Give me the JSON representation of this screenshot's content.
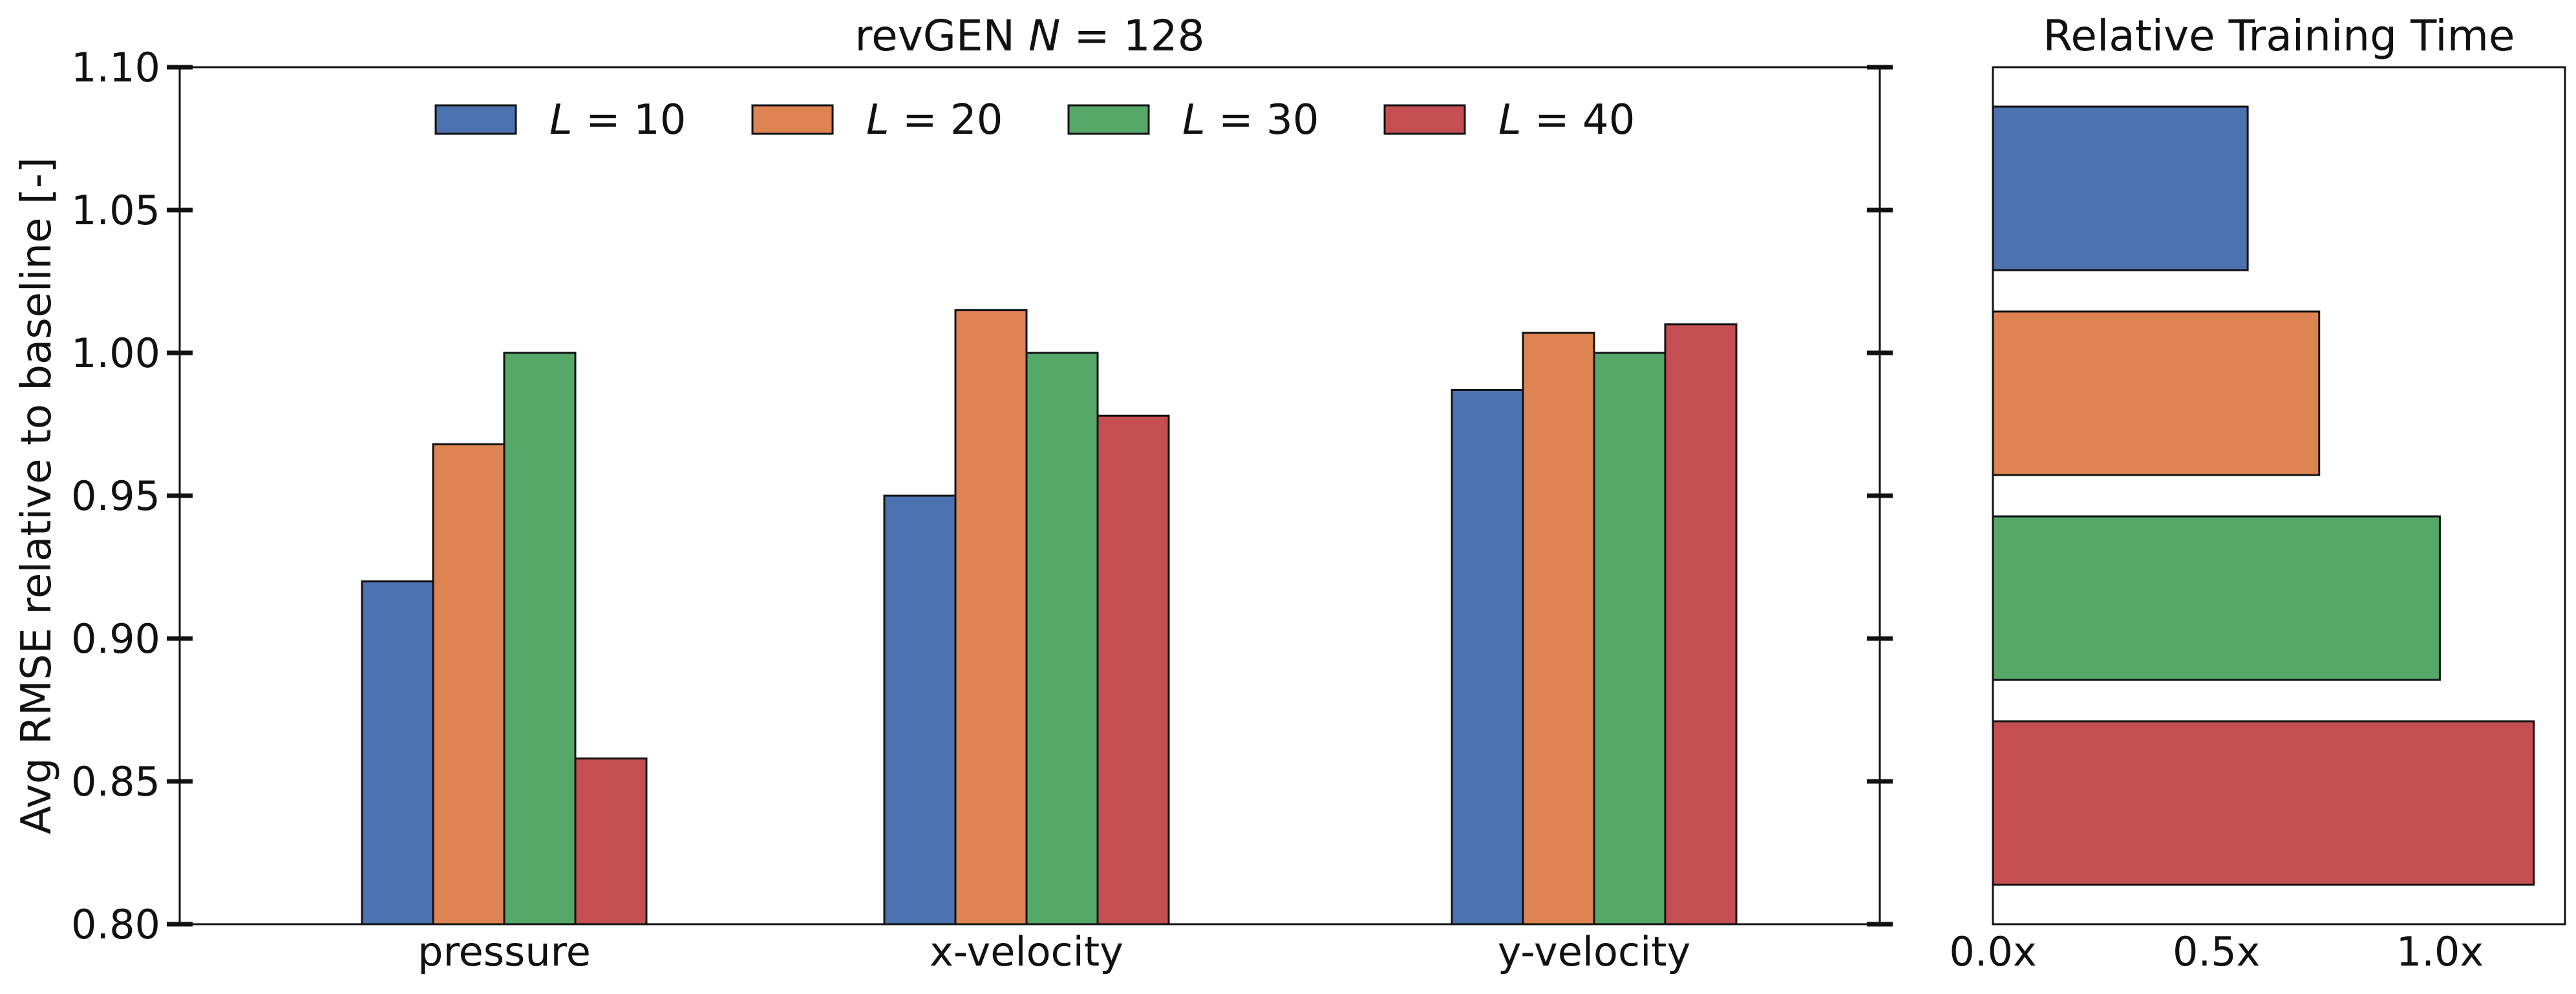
{
  "chart_data": [
    {
      "type": "bar",
      "title": "revGEN N = 128",
      "xlabel": "",
      "ylabel": "Avg RMSE relative to baseline [-]",
      "categories": [
        "pressure",
        "x-velocity",
        "y-velocity"
      ],
      "ylim": [
        0.8,
        1.1
      ],
      "yticks": [
        "0.80",
        "0.85",
        "0.90",
        "0.95",
        "1.00",
        "1.05",
        "1.10"
      ],
      "series": [
        {
          "name": "L = 10",
          "color": "#4c72b0",
          "values": [
            0.92,
            0.95,
            0.987
          ]
        },
        {
          "name": "L = 20",
          "color": "#dd8452",
          "values": [
            0.968,
            1.015,
            1.007
          ]
        },
        {
          "name": "L = 30",
          "color": "#55a868",
          "values": [
            1.0,
            1.0,
            1.0
          ]
        },
        {
          "name": "L = 40",
          "color": "#c44e52",
          "values": [
            0.858,
            0.978,
            1.01
          ]
        }
      ],
      "grid": false,
      "legend": "top-center"
    },
    {
      "type": "bar",
      "orientation": "horizontal",
      "title": "Relative Training Time",
      "xlabel": "",
      "ylabel": "",
      "xlim": [
        0.0,
        1.28
      ],
      "xticks": [
        "0.0x",
        "0.5x",
        "1.0x"
      ],
      "xtick_values": [
        0.0,
        0.5,
        1.0
      ],
      "categories": [
        "L = 10",
        "L = 20",
        "L = 30",
        "L = 40"
      ],
      "values": [
        0.57,
        0.73,
        1.0,
        1.21
      ],
      "colors": [
        "#4c72b0",
        "#dd8452",
        "#55a868",
        "#c44e52"
      ],
      "grid": false
    }
  ]
}
